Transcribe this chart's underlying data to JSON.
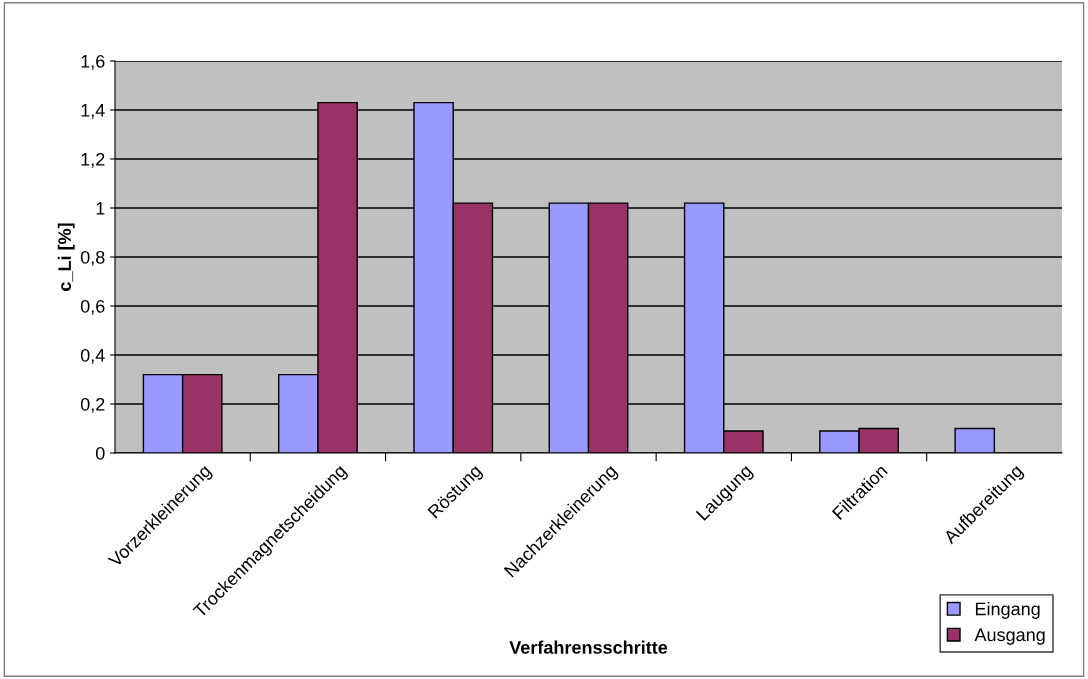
{
  "chart_data": {
    "type": "bar",
    "xlabel": "Verfahrensschritte",
    "ylabel": "c_Li [%]",
    "categories": [
      "Vorzerkleinerung",
      "Trockenmagnetscheidung",
      "Röstung",
      "Nachzerkleinerung",
      "Laugung",
      "Filtration",
      "Aufbereitung"
    ],
    "series": [
      {
        "name": "Eingang",
        "color": "#9999ff",
        "values": [
          0.32,
          0.32,
          1.43,
          1.02,
          1.02,
          0.09,
          0.1
        ]
      },
      {
        "name": "Ausgang",
        "color": "#993366",
        "values": [
          0.32,
          1.43,
          1.02,
          1.02,
          0.09,
          0.1,
          null
        ]
      }
    ],
    "ylim": [
      0,
      1.6
    ],
    "yticks": [
      0,
      {
        "value": 0.2,
        "label": "0,2"
      },
      {
        "value": 0.4,
        "label": "0,4"
      },
      {
        "value": 0.6,
        "label": "0,6"
      },
      {
        "value": 0.8,
        "label": "0,8"
      },
      1,
      {
        "value": 1.2,
        "label": "1,2"
      },
      {
        "value": 1.4,
        "label": "1,4"
      },
      {
        "value": 1.6,
        "label": "1,6"
      }
    ],
    "grid": "y",
    "legend": "bottom right"
  }
}
